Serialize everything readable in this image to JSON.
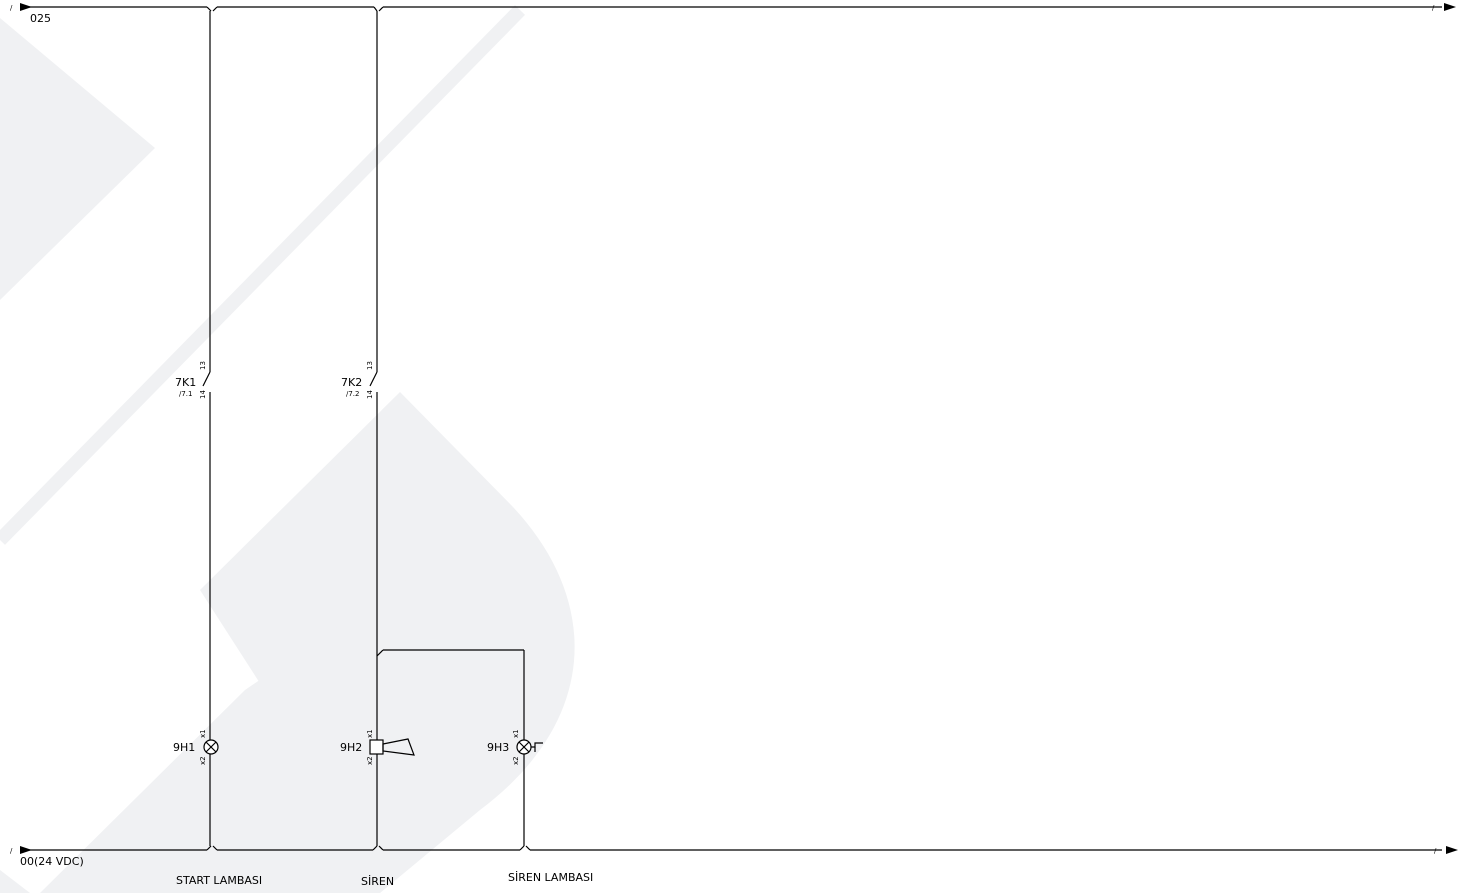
{
  "rails": {
    "top": {
      "left_ref": "/",
      "right_ref": "/",
      "label": "025"
    },
    "bottom": {
      "left_ref": "/",
      "right_ref": "/",
      "label": "00(24 VDC)"
    }
  },
  "contacts": [
    {
      "tag": "7K1",
      "xref": "/7.1",
      "pin_top": "13",
      "pin_bottom": "14"
    },
    {
      "tag": "7K2",
      "xref": "/7.2",
      "pin_top": "13",
      "pin_bottom": "14"
    }
  ],
  "devices": [
    {
      "tag": "9H1",
      "pin_top": "x1",
      "pin_bottom": "x2",
      "caption": "START LAMBASI",
      "kind": "lamp"
    },
    {
      "tag": "9H2",
      "pin_top": "x1",
      "pin_bottom": "x2",
      "caption": "SİREN",
      "kind": "siren"
    },
    {
      "tag": "9H3",
      "pin_top": "x1",
      "pin_bottom": "x2",
      "caption": "SİREN LAMBASI",
      "kind": "flashing-lamp"
    }
  ],
  "colors": {
    "wire": "#000000",
    "watermark": "#f0f1f3"
  }
}
